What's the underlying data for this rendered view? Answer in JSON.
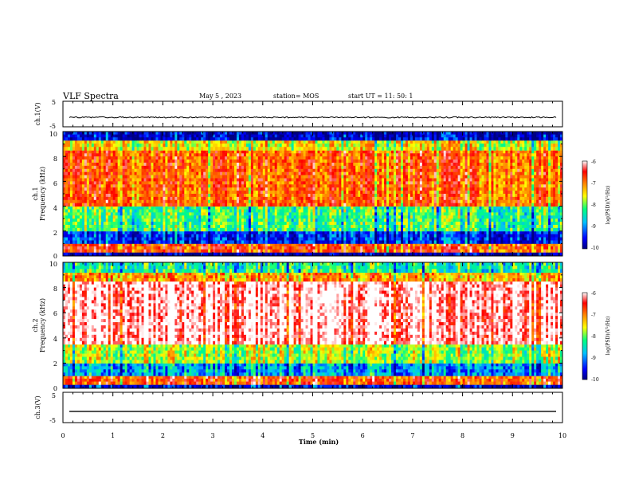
{
  "header": {
    "title": "VLF Spectra",
    "date": "May 5  , 2023",
    "station": "station= MOS",
    "start": "start  UT =   11: 50: 1"
  },
  "chart_data": [
    {
      "type": "line",
      "panel": "ch1-voltage",
      "ylabel": "ch.1(V)",
      "ylim": [
        -5,
        5
      ],
      "yticks": [
        "5",
        "-5"
      ],
      "trace_level": -1.3,
      "trace_color": "#000000"
    },
    {
      "type": "heatmap",
      "panel": "ch1-spectrogram",
      "ylabel": "ch.1\nFrequency (kHz)",
      "ylim": [
        0,
        10
      ],
      "yticks": [
        "0",
        "2",
        "4",
        "6",
        "8",
        "10"
      ],
      "colorbar": {
        "label": "log(PSD)(V²/Hz)",
        "range": [
          -10,
          -6
        ],
        "ticks": [
          "-6",
          "-7",
          "-8",
          "-9",
          "-10"
        ]
      },
      "bands": [
        {
          "from": 0,
          "to": 0.3,
          "level": -9.8
        },
        {
          "from": 0.3,
          "to": 1.0,
          "level": -6.8
        },
        {
          "from": 1.0,
          "to": 2.0,
          "level": -9.3
        },
        {
          "from": 2.0,
          "to": 4.0,
          "level": -8.2
        },
        {
          "from": 4.0,
          "to": 8.5,
          "level": -6.9
        },
        {
          "from": 8.5,
          "to": 9.3,
          "level": -7.6
        },
        {
          "from": 9.3,
          "to": 10,
          "level": -9.6
        }
      ]
    },
    {
      "type": "heatmap",
      "panel": "ch2-spectrogram",
      "ylabel": "ch.2\nFrequency (kHz)",
      "ylim": [
        0,
        10
      ],
      "yticks": [
        "0",
        "2",
        "4",
        "6",
        "8",
        "10"
      ],
      "colorbar": {
        "label": "log(PSD)(V²/Hz)",
        "range": [
          -10,
          -6
        ],
        "ticks": [
          "-6",
          "-7",
          "-8",
          "-9",
          "-10"
        ]
      },
      "bands": [
        {
          "from": 0,
          "to": 0.3,
          "level": -9.5
        },
        {
          "from": 0.3,
          "to": 1.0,
          "level": -6.8
        },
        {
          "from": 1.0,
          "to": 2.0,
          "level": -8.8
        },
        {
          "from": 2.0,
          "to": 3.5,
          "level": -7.8
        },
        {
          "from": 3.5,
          "to": 8.5,
          "level": -6.0
        },
        {
          "from": 8.5,
          "to": 9.2,
          "level": -7.2
        },
        {
          "from": 9.2,
          "to": 10,
          "level": -8.3
        }
      ]
    },
    {
      "type": "line",
      "panel": "ch3-voltage",
      "ylabel": "ch.3(V)",
      "ylim": [
        -5,
        5
      ],
      "yticks": [
        "5",
        "-5"
      ],
      "trace_level": -1.3,
      "trace_color": "#000000"
    }
  ],
  "xaxis": {
    "label": "Time  (min)",
    "range": [
      0,
      10
    ],
    "ticks": [
      "0",
      "1",
      "2",
      "3",
      "4",
      "5",
      "6",
      "7",
      "8",
      "9",
      "10"
    ]
  },
  "colors": {
    "scale": [
      "#000080",
      "#0000ff",
      "#00bfff",
      "#00ff80",
      "#ffff00",
      "#ff8000",
      "#ff0000",
      "#ffffff"
    ]
  }
}
